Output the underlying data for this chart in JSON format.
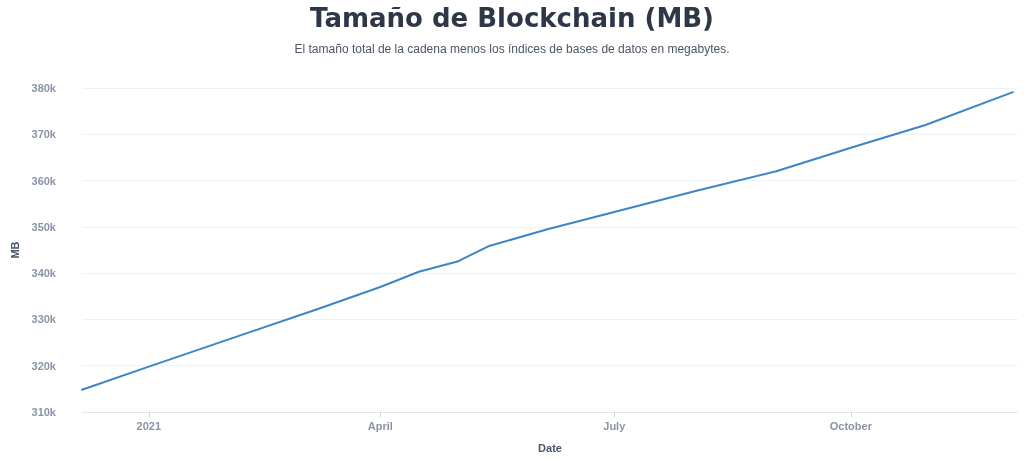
{
  "chart_data": {
    "type": "line",
    "title": "Tamaño de Blockchain (MB)",
    "subtitle": "El tamaño total de la cadena menos los índices de bases de datos en megabytes.",
    "xlabel": "Date",
    "ylabel": "MB",
    "x": [
      "2020-12-06",
      "2021-01-01",
      "2021-02-09",
      "2021-03-08",
      "2021-04-01",
      "2021-04-16",
      "2021-05-01",
      "2021-05-13",
      "2021-06-05",
      "2021-07-01",
      "2021-08-02",
      "2021-09-02",
      "2021-10-01",
      "2021-10-30",
      "2021-12-03"
    ],
    "series": [
      {
        "color": "#3d85c6",
        "values": [
          314800,
          319800,
          327200,
          332300,
          337000,
          340300,
          342500,
          345800,
          349500,
          353200,
          357800,
          362000,
          367100,
          372000,
          379100
        ]
      }
    ],
    "xlim": [
      "2020-12-06",
      "2021-12-05"
    ],
    "xticks": [
      {
        "value": "2021-01-01",
        "label": "2021"
      },
      {
        "value": "2021-04-01",
        "label": "April"
      },
      {
        "value": "2021-07-01",
        "label": "July"
      },
      {
        "value": "2021-10-01",
        "label": "October"
      }
    ],
    "ylim": [
      310000,
      380000
    ],
    "yticks": [
      {
        "value": 310000,
        "label": "310k"
      },
      {
        "value": 320000,
        "label": "320k"
      },
      {
        "value": 330000,
        "label": "330k"
      },
      {
        "value": 340000,
        "label": "340k"
      },
      {
        "value": 350000,
        "label": "350k"
      },
      {
        "value": 360000,
        "label": "360k"
      },
      {
        "value": 370000,
        "label": "370k"
      },
      {
        "value": 380000,
        "label": "380k"
      }
    ],
    "grid": "y",
    "marker": "none",
    "line_style": "solid"
  }
}
